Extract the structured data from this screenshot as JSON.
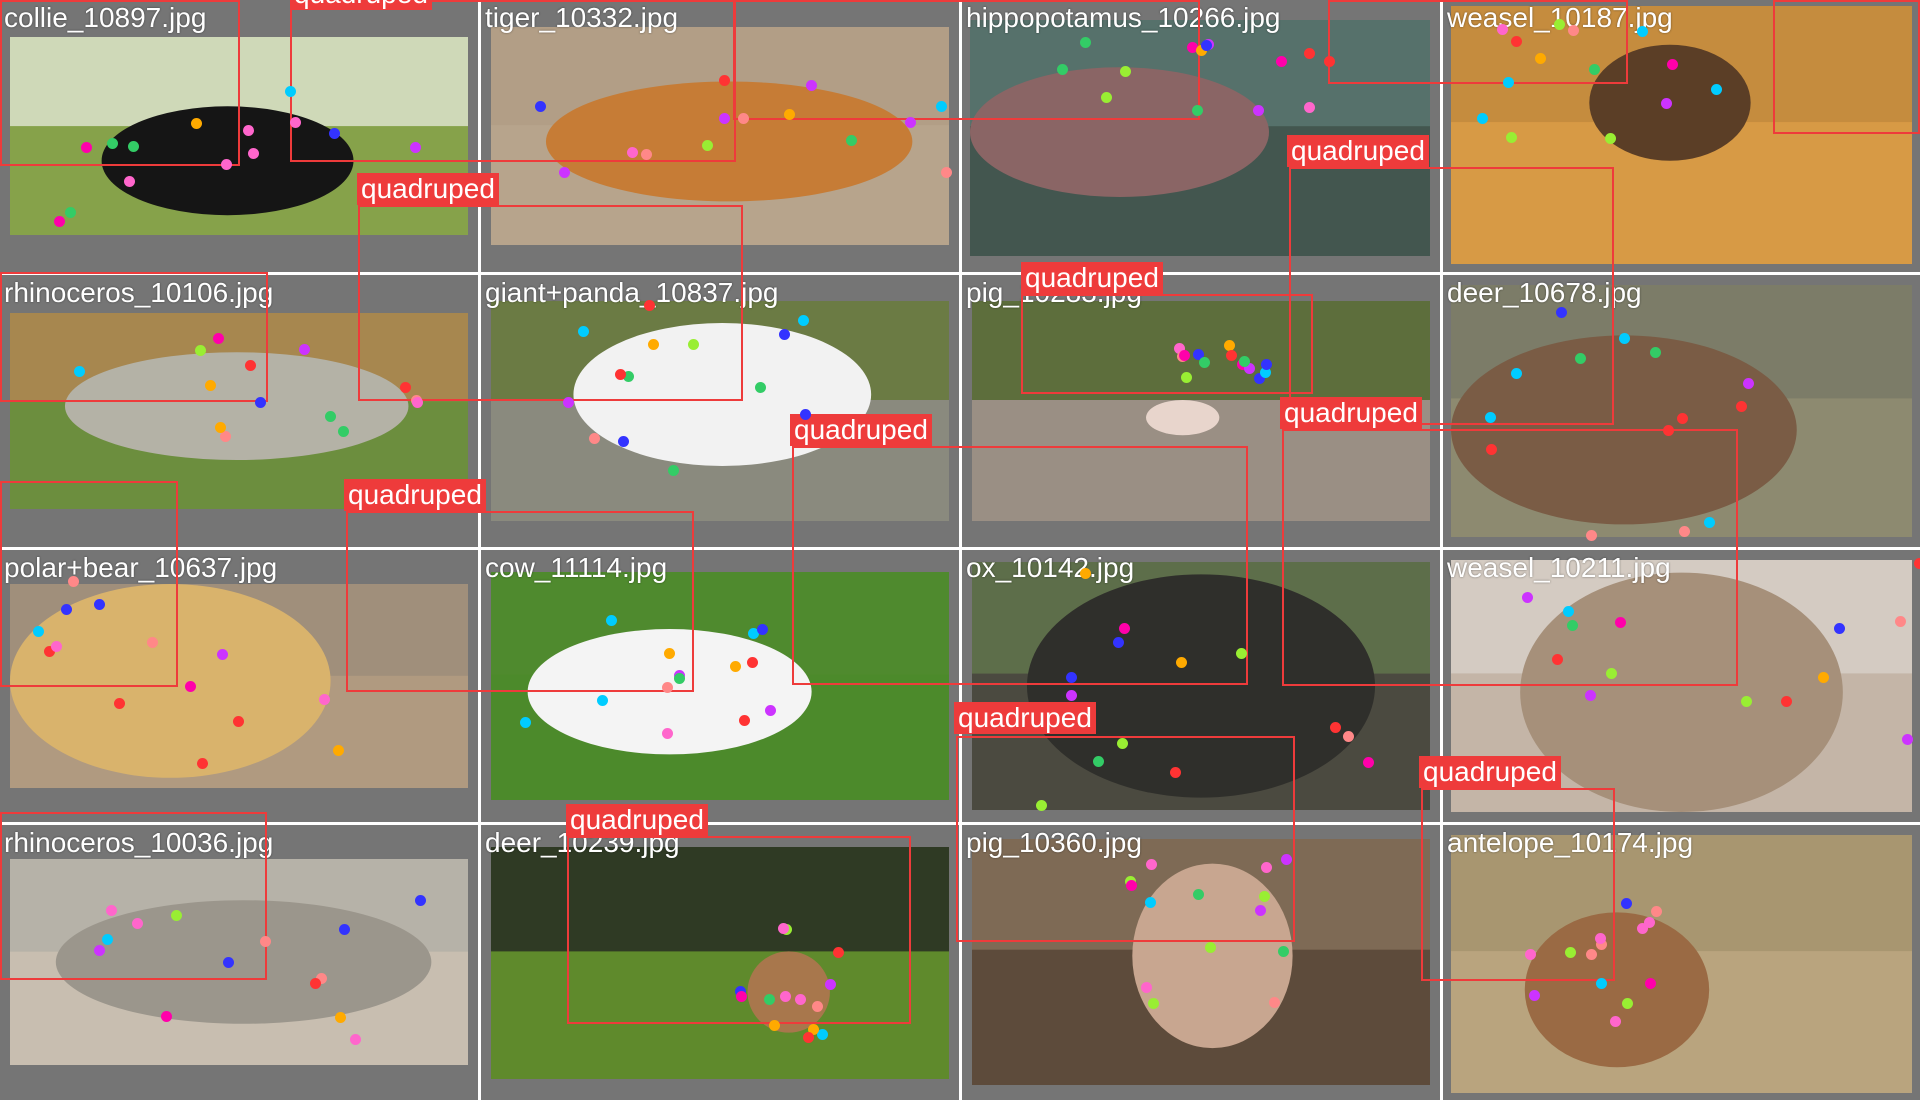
{
  "images": [
    {
      "id": "c0",
      "filename": "collie_10897.jpg",
      "sky": "#cfd9b8",
      "ground": "#86a24a",
      "body": "#151515"
    },
    {
      "id": "c1",
      "filename": "tiger_10332.jpg",
      "sky": "#b29e86",
      "ground": "#b7a48c",
      "body": "#c67c36"
    },
    {
      "id": "c2",
      "filename": "hippopotamus_10266.jpg",
      "sky": "#56716b",
      "ground": "#43564f",
      "body": "#8a6565"
    },
    {
      "id": "c3",
      "filename": "weasel_10187.jpg",
      "sky": "#c58c3e",
      "ground": "#d79a45",
      "body": "#5b3e26"
    },
    {
      "id": "c4",
      "filename": "rhinoceros_10106.jpg",
      "sky": "#a7874f",
      "ground": "#6c8e3e",
      "body": "#b4b2a6"
    },
    {
      "id": "c5",
      "filename": "giant+panda_10837.jpg",
      "sky": "#6b7b44",
      "ground": "#8a8a7e",
      "body": "#f2f2f2"
    },
    {
      "id": "c6",
      "filename": "pig_10283.jpg",
      "sky": "#5d6e3c",
      "ground": "#9a8f84",
      "body": "#e8d5cc"
    },
    {
      "id": "c7",
      "filename": "deer_10678.jpg",
      "sky": "#7c7c68",
      "ground": "#8d8a70",
      "body": "#7a5c45"
    },
    {
      "id": "c8",
      "filename": "polar+bear_10637.jpg",
      "sky": "#a08f7b",
      "ground": "#b09a80",
      "body": "#d9b36c"
    },
    {
      "id": "c9",
      "filename": "cow_11114.jpg",
      "sky": "#4f8a2e",
      "ground": "#4c8a2b",
      "body": "#f4f4f4"
    },
    {
      "id": "c10",
      "filename": "ox_10142.jpg",
      "sky": "#5d6e4a",
      "ground": "#4b4a40",
      "body": "#2f2f2b"
    },
    {
      "id": "c11",
      "filename": "weasel_10211.jpg",
      "sky": "#d4cbc2",
      "ground": "#c4b5a7",
      "body": "#a6907a"
    },
    {
      "id": "c12",
      "filename": "rhinoceros_10036.jpg",
      "sky": "#b6b2a8",
      "ground": "#c8beb0",
      "body": "#9b968c"
    },
    {
      "id": "c13",
      "filename": "deer_10239.jpg",
      "sky": "#2f3a24",
      "ground": "#5f8a2c",
      "body": "#a8774c"
    },
    {
      "id": "c14",
      "filename": "pig_10360.jpg",
      "sky": "#7e6a55",
      "ground": "#5d4b3b",
      "body": "#c8a690"
    },
    {
      "id": "c15",
      "filename": "antelope_10174.jpg",
      "sky": "#a89670",
      "ground": "#b9a47e",
      "body": "#9a6a44"
    }
  ],
  "box_label": "quadruped",
  "colors": {
    "box": "#ee3b3b",
    "tile_bg": "#757575",
    "label_text": "#ffffff"
  },
  "keypoint_palette": [
    "#ff3333",
    "#ff66cc",
    "#cc33ff",
    "#3333ff",
    "#00ccff",
    "#33cc66",
    "#99ee33",
    "#ffaa00",
    "#ff8888",
    "#ff00aa"
  ],
  "detections": [
    {
      "label": "quadruped"
    },
    {
      "label": "quadruped"
    },
    {
      "label": "quadruped"
    },
    {
      "label": "quadruped"
    },
    {
      "label": "quadruped"
    },
    {
      "label": "quadruped"
    },
    {
      "label": "quadruped"
    },
    {
      "label": "quadruped"
    },
    {
      "label": "quadruped"
    },
    {
      "label": "quadruped"
    },
    {
      "label": "quadruped"
    },
    {
      "label": "quadruped"
    },
    {
      "label": "quadruped"
    },
    {
      "label": "quadruped"
    },
    {
      "label": "quadruped"
    },
    {
      "label": "quadruped"
    }
  ]
}
